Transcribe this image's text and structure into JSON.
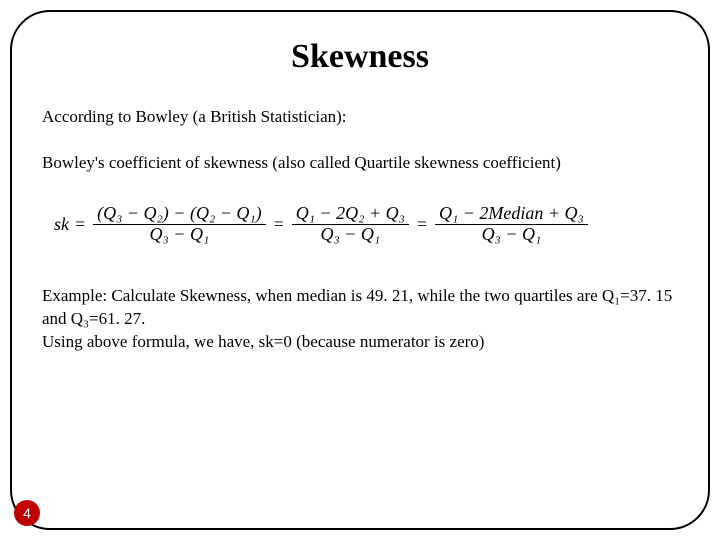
{
  "title": "Skewness",
  "intro": "According to Bowley (a British Statistician):",
  "definition": "Bowley's coefficient of skewness (also called Quartile skewness coefficient)",
  "formula": {
    "lhs": "sk",
    "frac1_num": "(Q₃ − Q₂) − (Q₂ − Q₁)",
    "frac1_den": "Q₃ − Q₁",
    "frac2_num": "Q₁ − 2Q₂ + Q₃",
    "frac2_den": "Q₃ − Q₁",
    "frac3_num": "Q₁ − 2Median + Q₃",
    "frac3_den": "Q₃ − Q₁"
  },
  "example_line1": "Example: Calculate Skewness, when median is 49. 21, while the two quartiles are Q₁=37. 15 and Q₃=61. 27.",
  "example_line2": "Using above formula, we have, sk=0 (because numerator is zero)",
  "page_number": "4",
  "style": {
    "title_fontsize": 34,
    "body_fontsize": 17,
    "formula_fontsize": 18,
    "border_color": "#000000",
    "border_radius": 40,
    "page_badge_bg": "#c00000",
    "page_badge_fg": "#ffffff",
    "background": "#ffffff"
  }
}
